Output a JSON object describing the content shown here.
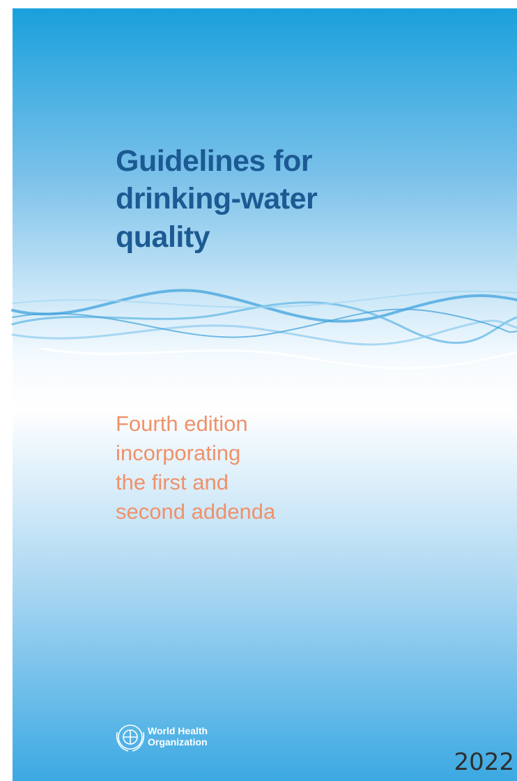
{
  "cover": {
    "title": [
      "Guidelines for",
      "drinking-water",
      "quality"
    ],
    "subtitle": [
      "Fourth edition",
      "incorporating",
      "the first and",
      "second addenda"
    ],
    "publisher": [
      "World Health",
      "Organization"
    ],
    "year": "2022"
  }
}
